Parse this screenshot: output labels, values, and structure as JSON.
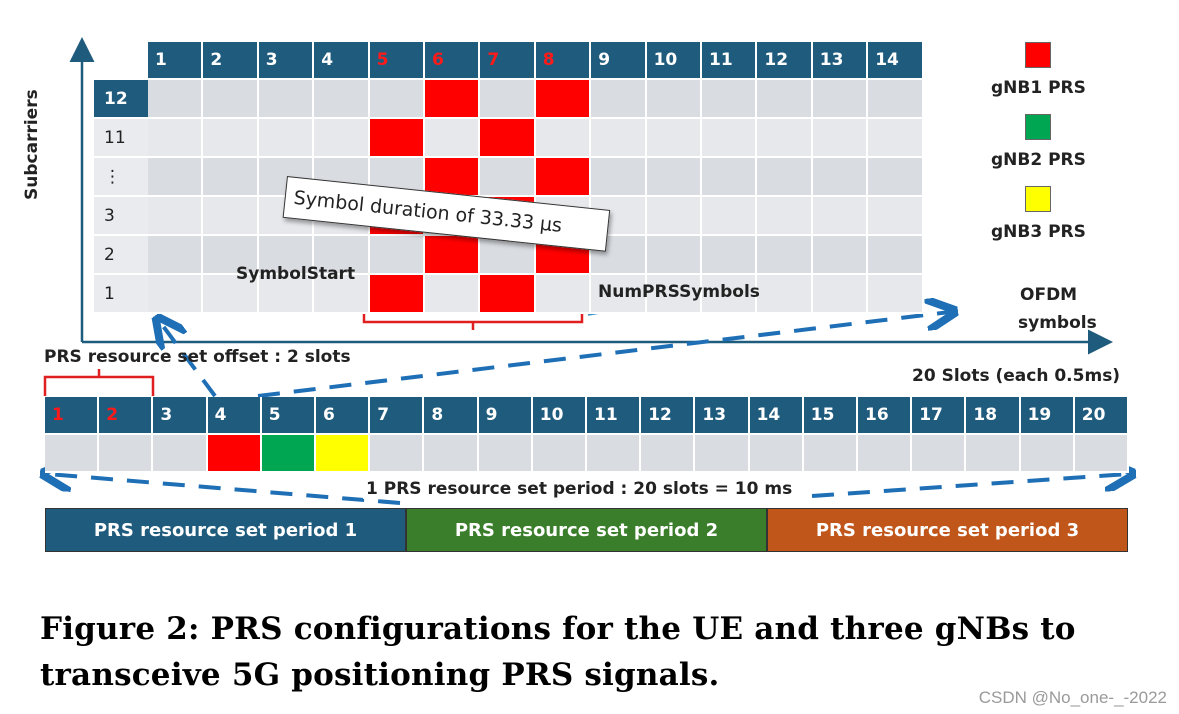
{
  "top_grid": {
    "y_axis_label": "Subcarriers",
    "symbol_headers": [
      "1",
      "2",
      "3",
      "4",
      "5",
      "6",
      "7",
      "8",
      "9",
      "10",
      "11",
      "12",
      "13",
      "14"
    ],
    "highlight_headers": [
      "5",
      "6",
      "7",
      "8"
    ],
    "row_labels": [
      "12",
      "11",
      "⋮",
      "3",
      "2",
      "1"
    ],
    "red_cells": [
      {
        "row": "12",
        "cols": [
          "6",
          "8"
        ]
      },
      {
        "row": "11",
        "cols": [
          "5",
          "7"
        ]
      },
      {
        "row": "⋮",
        "cols": [
          "6",
          "8"
        ]
      },
      {
        "row": "3",
        "cols": [
          "5",
          "7"
        ]
      },
      {
        "row": "2",
        "cols": [
          "6",
          "8"
        ]
      },
      {
        "row": "1",
        "cols": [
          "5",
          "7"
        ]
      }
    ],
    "callout": "Symbol duration of 33.33 µs",
    "symbol_start_label": "SymbolStart",
    "num_prs_symbols_label": "NumPRSSymbols",
    "x_axis_label_line1": "OFDM",
    "x_axis_label_line2": "symbols"
  },
  "legend": [
    {
      "label": "gNB1 PRS",
      "color": "#ff0000"
    },
    {
      "label": "gNB2 PRS",
      "color": "#00a651"
    },
    {
      "label": "gNB3 PRS",
      "color": "#ffff00"
    }
  ],
  "slots": {
    "offset_label": "PRS resource set offset : 2 slots",
    "count_label": "20 Slots (each 0.5ms)",
    "headers": [
      "1",
      "2",
      "3",
      "4",
      "5",
      "6",
      "7",
      "8",
      "9",
      "10",
      "11",
      "12",
      "13",
      "14",
      "15",
      "16",
      "17",
      "18",
      "19",
      "20"
    ],
    "red_headers": [
      "1",
      "2"
    ],
    "colored_slots": [
      {
        "slot": "4",
        "color": "#ff0000"
      },
      {
        "slot": "5",
        "color": "#00a651"
      },
      {
        "slot": "6",
        "color": "#ffff00"
      }
    ],
    "period_label": "1 PRS resource set period : 20 slots = 10 ms"
  },
  "periods": [
    {
      "label": "PRS resource set period 1",
      "color": "#1f5b7c"
    },
    {
      "label": "PRS resource set period 2",
      "color": "#3a7d2a"
    },
    {
      "label": "PRS resource set period 3",
      "color": "#c0561a"
    }
  ],
  "caption": {
    "line1": "Figure 2: PRS configurations for the UE and three gNBs to",
    "line2": "transceive 5G positioning PRS signals."
  },
  "watermark": "CSDN @No_one-_-2022"
}
